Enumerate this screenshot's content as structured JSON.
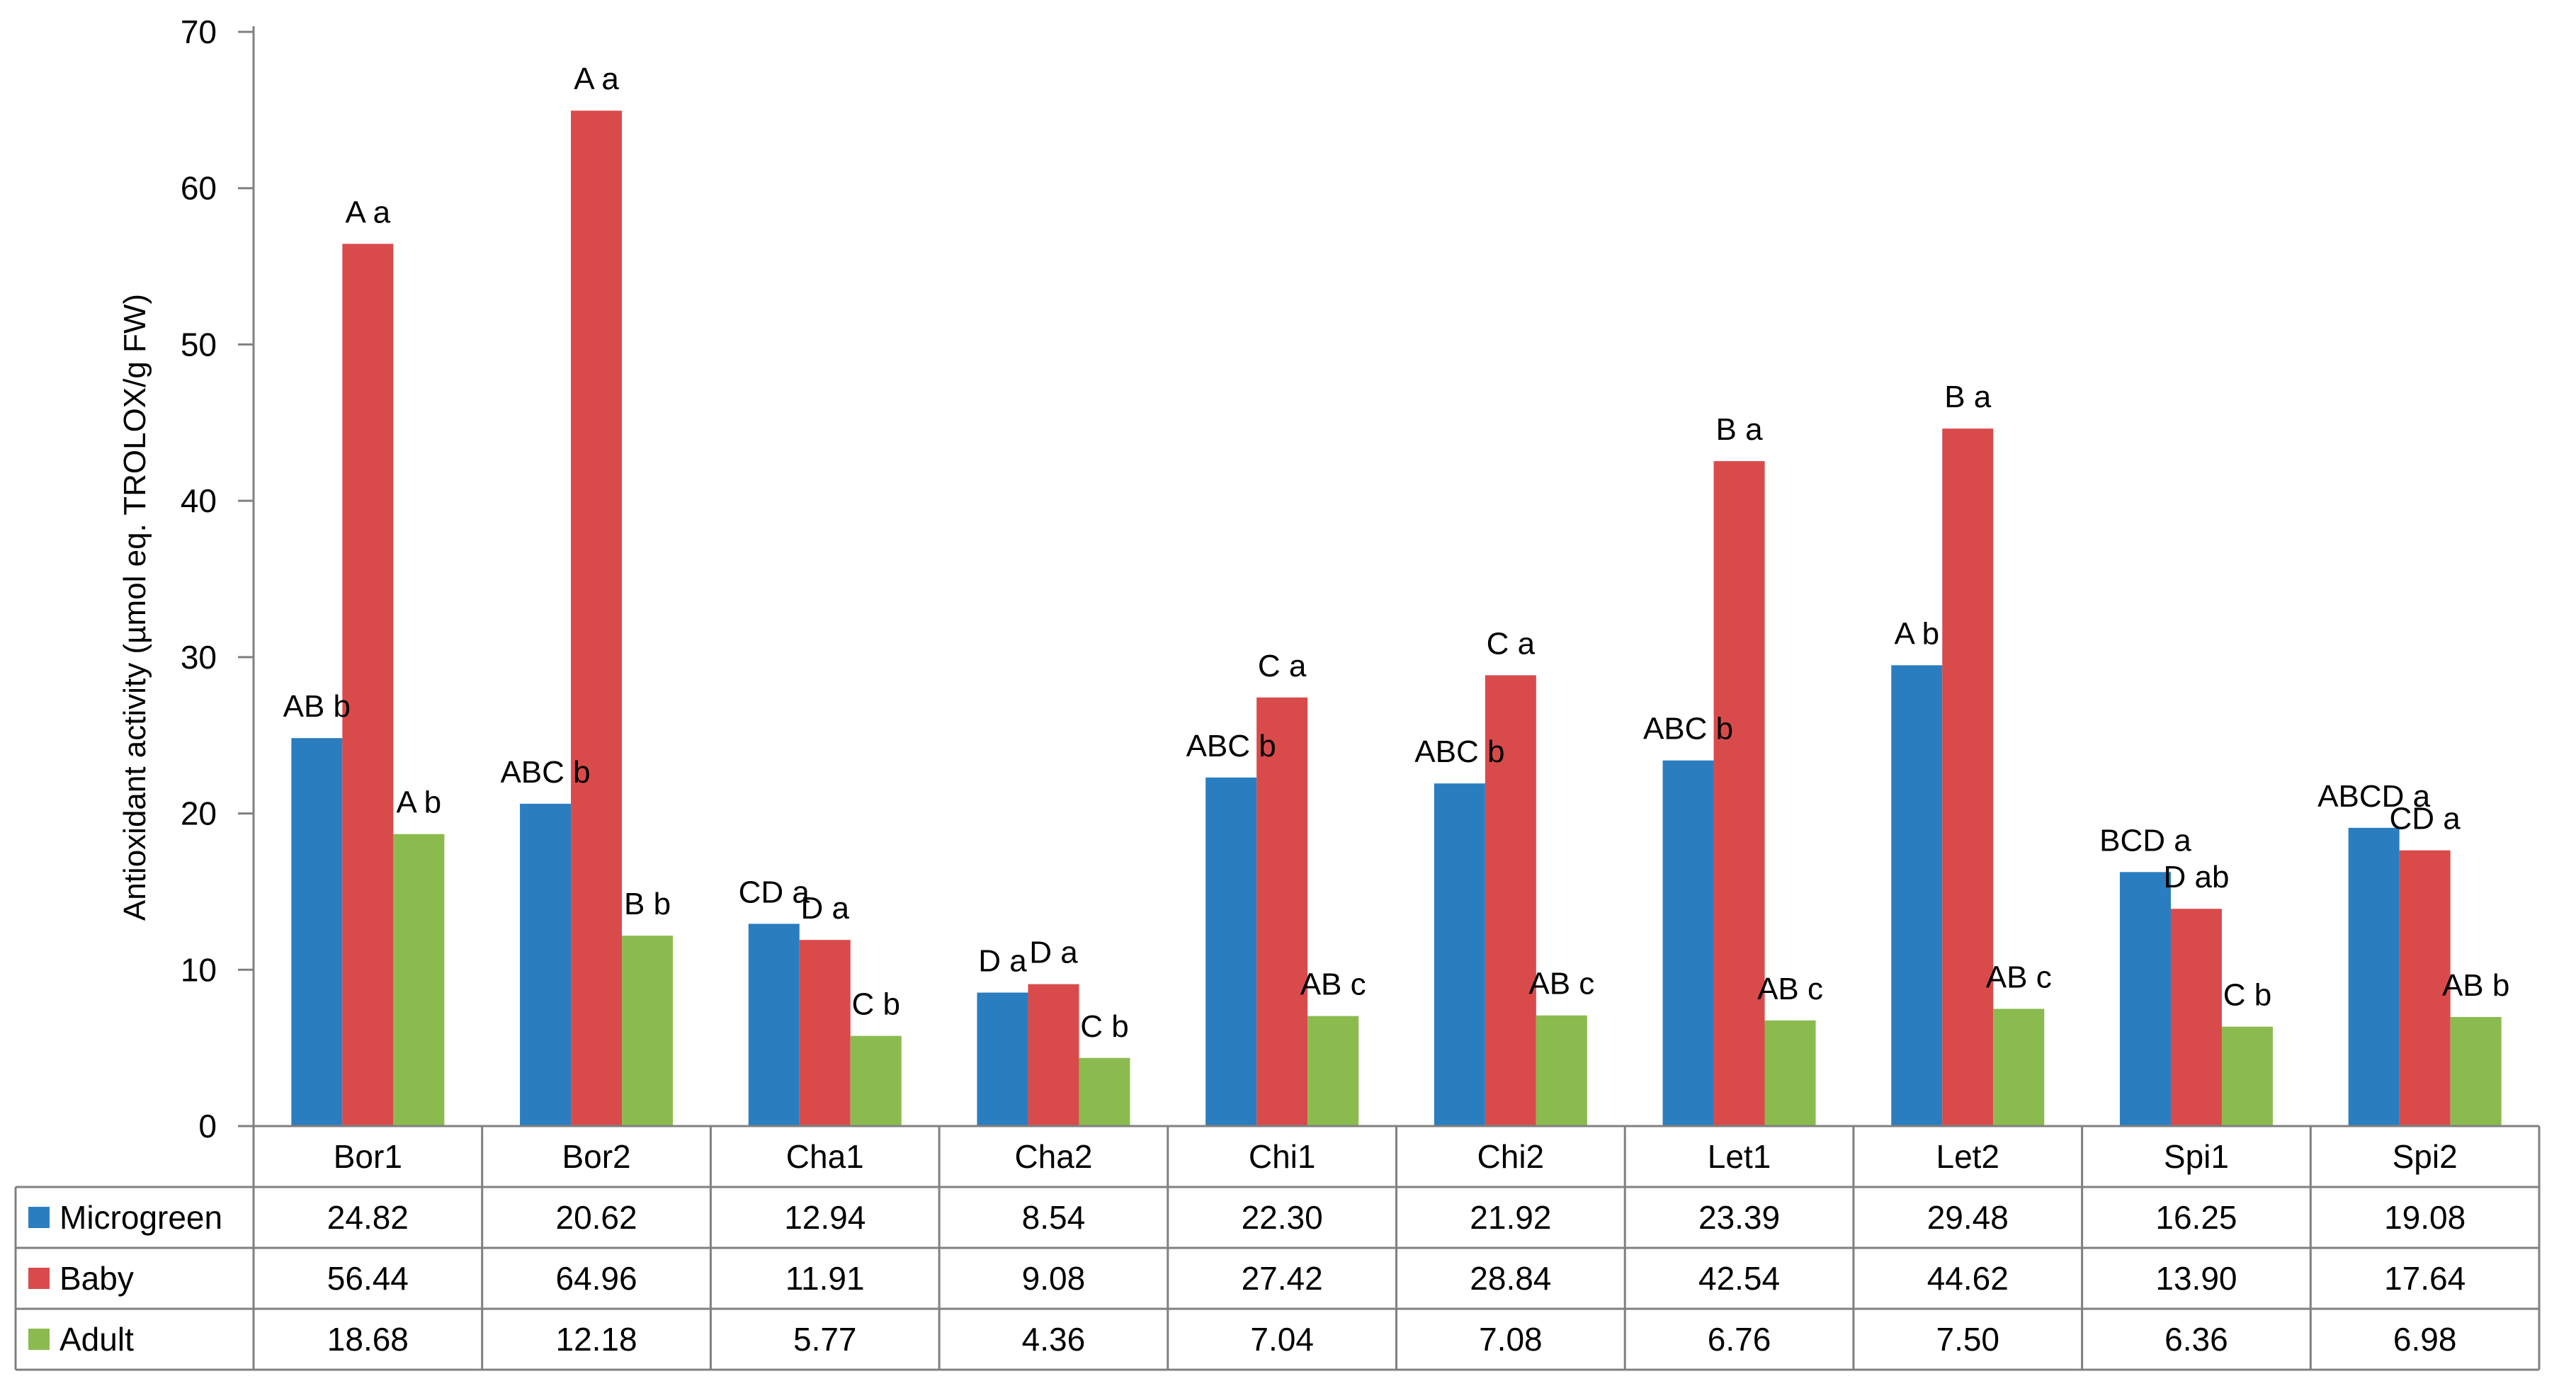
{
  "chart_data": {
    "type": "bar",
    "title": "",
    "xlabel": "",
    "ylabel": "Antioxidant activity (µmol eq. TROLOX/g FW)",
    "ylim": [
      0,
      70
    ],
    "yticks": [
      0,
      10,
      20,
      30,
      40,
      50,
      60,
      70
    ],
    "grid": false,
    "legend": "data-table",
    "categories": [
      "Bor1",
      "Bor2",
      "Cha1",
      "Cha2",
      "Chi1",
      "Chi2",
      "Let1",
      "Let2",
      "Spi1",
      "Spi2"
    ],
    "series": [
      {
        "name": "Microgreen",
        "color": "#2a7ec0",
        "values": [
          24.82,
          20.62,
          12.94,
          8.54,
          22.3,
          21.92,
          23.39,
          29.48,
          16.25,
          19.08
        ],
        "display": [
          "24.82",
          "20.62",
          "12.94",
          "8.54",
          "22.30",
          "21.92",
          "23.39",
          "29.48",
          "16.25",
          "19.08"
        ],
        "labels": [
          "AB b",
          "ABC b",
          "CD a",
          "D a",
          "ABC b",
          "ABC b",
          "ABC b",
          "A b",
          "BCD a",
          "ABCD a"
        ]
      },
      {
        "name": "Baby",
        "color": "#d94b4b",
        "values": [
          56.44,
          64.96,
          11.91,
          9.08,
          27.42,
          28.84,
          42.54,
          44.62,
          13.9,
          17.64
        ],
        "display": [
          "56.44",
          "64.96",
          "11.91",
          "9.08",
          "27.42",
          "28.84",
          "42.54",
          "44.62",
          "13.90",
          "17.64"
        ],
        "labels": [
          "A a",
          "A a",
          "D a",
          "D a",
          "C a",
          "C a",
          "B a",
          "B a",
          "D ab",
          "CD a"
        ]
      },
      {
        "name": "Adult",
        "color": "#8bbb4f",
        "values": [
          18.68,
          12.18,
          5.77,
          4.36,
          7.04,
          7.08,
          6.76,
          7.5,
          6.36,
          6.98
        ],
        "display": [
          "18.68",
          "12.18",
          "5.77",
          "4.36",
          "7.04",
          "7.08",
          "6.76",
          "7.50",
          "6.36",
          "6.98"
        ],
        "labels": [
          "A b",
          "B b",
          "C b",
          "C b",
          "AB c",
          "AB c",
          "AB c",
          "AB c",
          "C b",
          "AB b"
        ]
      }
    ]
  }
}
